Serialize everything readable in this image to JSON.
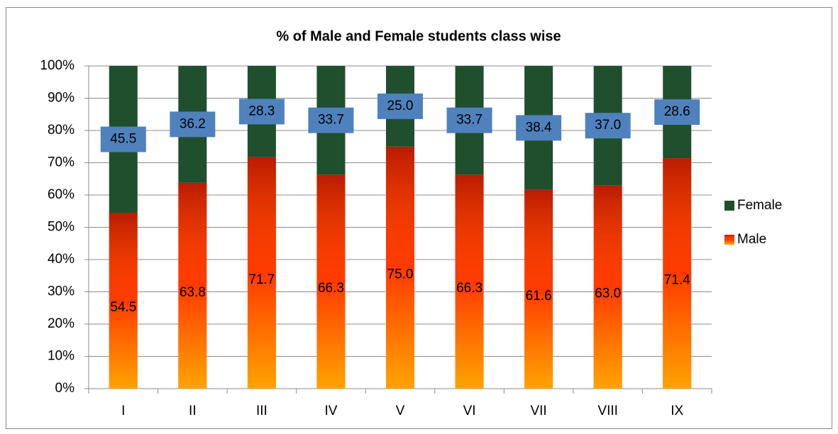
{
  "chart_data": {
    "type": "stacked_bar_100",
    "title": "% of Male and Female students class wise",
    "categories": [
      "I",
      "II",
      "III",
      "IV",
      "V",
      "VI",
      "VII",
      "VIII",
      "IX"
    ],
    "series": [
      {
        "name": "Male",
        "color": "#ff2a00",
        "values": [
          54.5,
          63.8,
          71.7,
          66.3,
          75.0,
          66.3,
          61.6,
          63.0,
          71.4
        ],
        "value_labels": [
          "54.5",
          "63.8",
          "71.7",
          "66.3",
          "75.0",
          "66.3",
          "61.6",
          "63.0",
          "71.4"
        ]
      },
      {
        "name": "Female",
        "color": "#1f4f2c",
        "values": [
          45.5,
          36.2,
          28.3,
          33.7,
          25.0,
          33.7,
          38.4,
          37.0,
          28.6
        ],
        "value_labels": [
          "45.5",
          "36.2",
          "28.3",
          "33.7",
          "25.0",
          "33.7",
          "38.4",
          "37.0",
          "28.6"
        ]
      }
    ],
    "ylim": [
      0,
      100
    ],
    "yticks": [
      {
        "value": 0,
        "label": "0%"
      },
      {
        "value": 10,
        "label": "10%"
      },
      {
        "value": 20,
        "label": "20%"
      },
      {
        "value": 30,
        "label": "30%"
      },
      {
        "value": 40,
        "label": "40%"
      },
      {
        "value": 50,
        "label": "50%"
      },
      {
        "value": 60,
        "label": "60%"
      },
      {
        "value": 70,
        "label": "70%"
      },
      {
        "value": 80,
        "label": "80%"
      },
      {
        "value": 90,
        "label": "90%"
      },
      {
        "value": 100,
        "label": "100%"
      }
    ],
    "grid": true,
    "legend": "right"
  }
}
